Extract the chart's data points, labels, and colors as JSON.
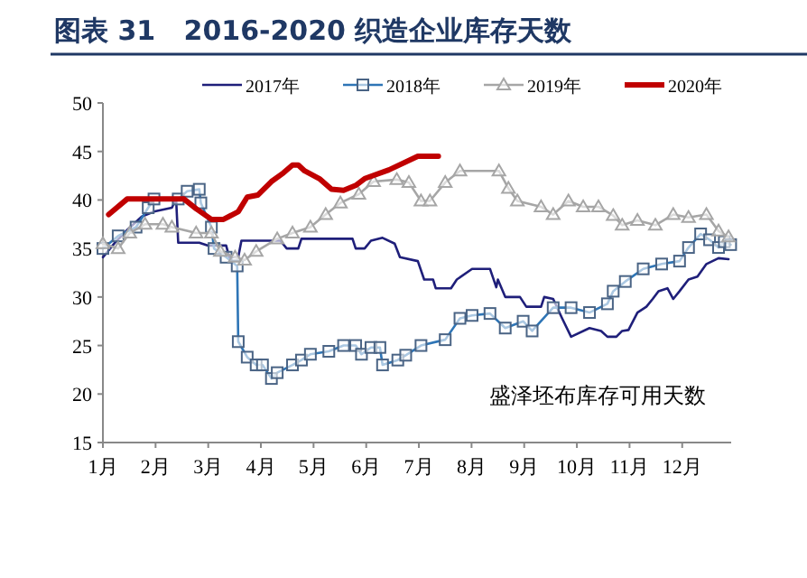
{
  "chart_data": {
    "type": "line",
    "title": "图表 31   2016-2020 织造企业库存天数",
    "annotations": [
      "盛泽坯布库存可用天数"
    ],
    "xlim": [
      1,
      12.93
    ],
    "xticks": [
      {
        "value": 1,
        "label": "1月"
      },
      {
        "value": 2,
        "label": "2月"
      },
      {
        "value": 3,
        "label": "3月"
      },
      {
        "value": 4,
        "label": "4月"
      },
      {
        "value": 5,
        "label": "5月"
      },
      {
        "value": 6,
        "label": "6月"
      },
      {
        "value": 7,
        "label": "7月"
      },
      {
        "value": 8,
        "label": "8月"
      },
      {
        "value": 9,
        "label": "9月"
      },
      {
        "value": 10,
        "label": "10月"
      },
      {
        "value": 11,
        "label": "11月"
      },
      {
        "value": 12,
        "label": "12月"
      }
    ],
    "ylim": [
      15,
      50
    ],
    "yticks": [
      15,
      20,
      25,
      30,
      35,
      40,
      45,
      50
    ],
    "grid": false,
    "legend": "top",
    "series": [
      {
        "name": "2017年",
        "color": "#1f1f7a",
        "marker": "none",
        "x": [
          1.0,
          1.23,
          1.46,
          1.74,
          1.97,
          2.31,
          2.39,
          2.43,
          2.83,
          3.0,
          3.34,
          3.4,
          3.57,
          3.63,
          4.37,
          4.49,
          4.71,
          4.77,
          5.74,
          5.8,
          5.97,
          6.09,
          6.31,
          6.54,
          6.64,
          6.98,
          7.1,
          7.27,
          7.32,
          7.61,
          7.72,
          8.01,
          8.35,
          8.47,
          8.5,
          8.64,
          8.92,
          9.04,
          9.32,
          9.38,
          9.55,
          9.72,
          9.89,
          10.24,
          10.46,
          10.58,
          10.75,
          10.86,
          10.98,
          11.15,
          11.32,
          11.44,
          11.55,
          11.72,
          11.83,
          11.95,
          12.12,
          12.29,
          12.46,
          12.69,
          12.88
        ],
        "values": [
          34.1,
          35.6,
          36.9,
          38.3,
          38.8,
          39.2,
          40.1,
          35.6,
          35.6,
          35.3,
          35.3,
          34.1,
          34.1,
          35.8,
          35.8,
          35.0,
          35.0,
          36.0,
          36.0,
          35.0,
          35.0,
          35.8,
          36.1,
          35.5,
          34.1,
          33.7,
          31.8,
          31.8,
          30.9,
          30.9,
          31.8,
          32.9,
          32.9,
          31.0,
          31.8,
          30.0,
          30.0,
          29.0,
          29.0,
          30.0,
          29.8,
          27.8,
          25.9,
          26.8,
          26.5,
          25.9,
          25.9,
          26.5,
          26.6,
          28.4,
          29.0,
          29.8,
          30.6,
          30.9,
          29.8,
          30.6,
          31.8,
          32.1,
          33.4,
          34.0,
          33.9
        ]
      },
      {
        "name": "2018年",
        "color": "#2e75b6",
        "marker": "square",
        "x": [
          1.0,
          1.29,
          1.63,
          1.86,
          1.97,
          2.43,
          2.6,
          2.83,
          2.86,
          3.06,
          3.11,
          3.34,
          3.55,
          3.57,
          3.74,
          3.91,
          4.03,
          4.2,
          4.31,
          4.6,
          4.77,
          4.94,
          5.29,
          5.57,
          5.8,
          5.91,
          6.09,
          6.26,
          6.31,
          6.6,
          6.75,
          7.04,
          7.5,
          7.78,
          8.01,
          8.35,
          8.64,
          8.98,
          9.15,
          9.55,
          9.89,
          10.24,
          10.58,
          10.69,
          10.92,
          11.26,
          11.61,
          11.95,
          12.12,
          12.35,
          12.52,
          12.69,
          12.8,
          12.92
        ],
        "values": [
          35.0,
          36.3,
          37.2,
          39.2,
          40.1,
          40.1,
          40.9,
          41.1,
          39.7,
          37.2,
          35.0,
          34.1,
          33.2,
          25.4,
          23.8,
          23.0,
          23.0,
          21.6,
          22.2,
          23.0,
          23.5,
          24.1,
          24.4,
          25.0,
          25.0,
          24.1,
          24.8,
          24.8,
          23.0,
          23.5,
          24.0,
          25.0,
          25.6,
          27.8,
          28.1,
          28.3,
          26.8,
          27.5,
          26.5,
          28.9,
          28.9,
          28.4,
          29.3,
          30.6,
          31.6,
          32.9,
          33.4,
          33.7,
          35.1,
          36.5,
          35.9,
          35.1,
          35.7,
          35.4
        ]
      },
      {
        "name": "2019年",
        "color": "#a6a6a6",
        "marker": "triangle",
        "x": [
          1.0,
          1.29,
          1.51,
          1.8,
          2.14,
          2.31,
          2.77,
          3.06,
          3.23,
          3.51,
          3.69,
          3.91,
          4.31,
          4.6,
          4.94,
          5.23,
          5.51,
          5.86,
          6.14,
          6.58,
          6.81,
          7.04,
          7.21,
          7.5,
          7.78,
          8.52,
          8.7,
          8.87,
          9.32,
          9.55,
          9.84,
          10.12,
          10.41,
          10.69,
          10.86,
          11.15,
          11.49,
          11.83,
          12.12,
          12.46,
          12.69,
          12.88
        ],
        "values": [
          35.5,
          35.0,
          36.6,
          37.5,
          37.5,
          37.2,
          36.6,
          36.6,
          34.7,
          34.1,
          33.8,
          34.7,
          36.0,
          36.6,
          37.2,
          38.5,
          39.7,
          40.6,
          41.9,
          42.1,
          41.8,
          39.9,
          39.9,
          41.8,
          43.0,
          43.0,
          41.2,
          39.9,
          39.3,
          38.5,
          39.9,
          39.3,
          39.3,
          38.4,
          37.4,
          37.9,
          37.4,
          38.5,
          38.2,
          38.5,
          36.8,
          36.2
        ]
      },
      {
        "name": "2020年",
        "color": "#c00000",
        "marker": "none",
        "x": [
          1.11,
          1.46,
          2.54,
          2.77,
          3.06,
          3.29,
          3.57,
          3.74,
          3.94,
          4.2,
          4.43,
          4.6,
          4.71,
          4.83,
          5.11,
          5.34,
          5.57,
          5.8,
          5.97,
          6.43,
          6.98,
          7.37
        ],
        "values": [
          38.5,
          40.1,
          40.1,
          39.1,
          38.0,
          38.0,
          38.8,
          40.3,
          40.5,
          41.9,
          42.8,
          43.6,
          43.6,
          43.0,
          42.2,
          41.1,
          41.0,
          41.5,
          42.2,
          43.1,
          44.5,
          44.5
        ]
      }
    ]
  }
}
